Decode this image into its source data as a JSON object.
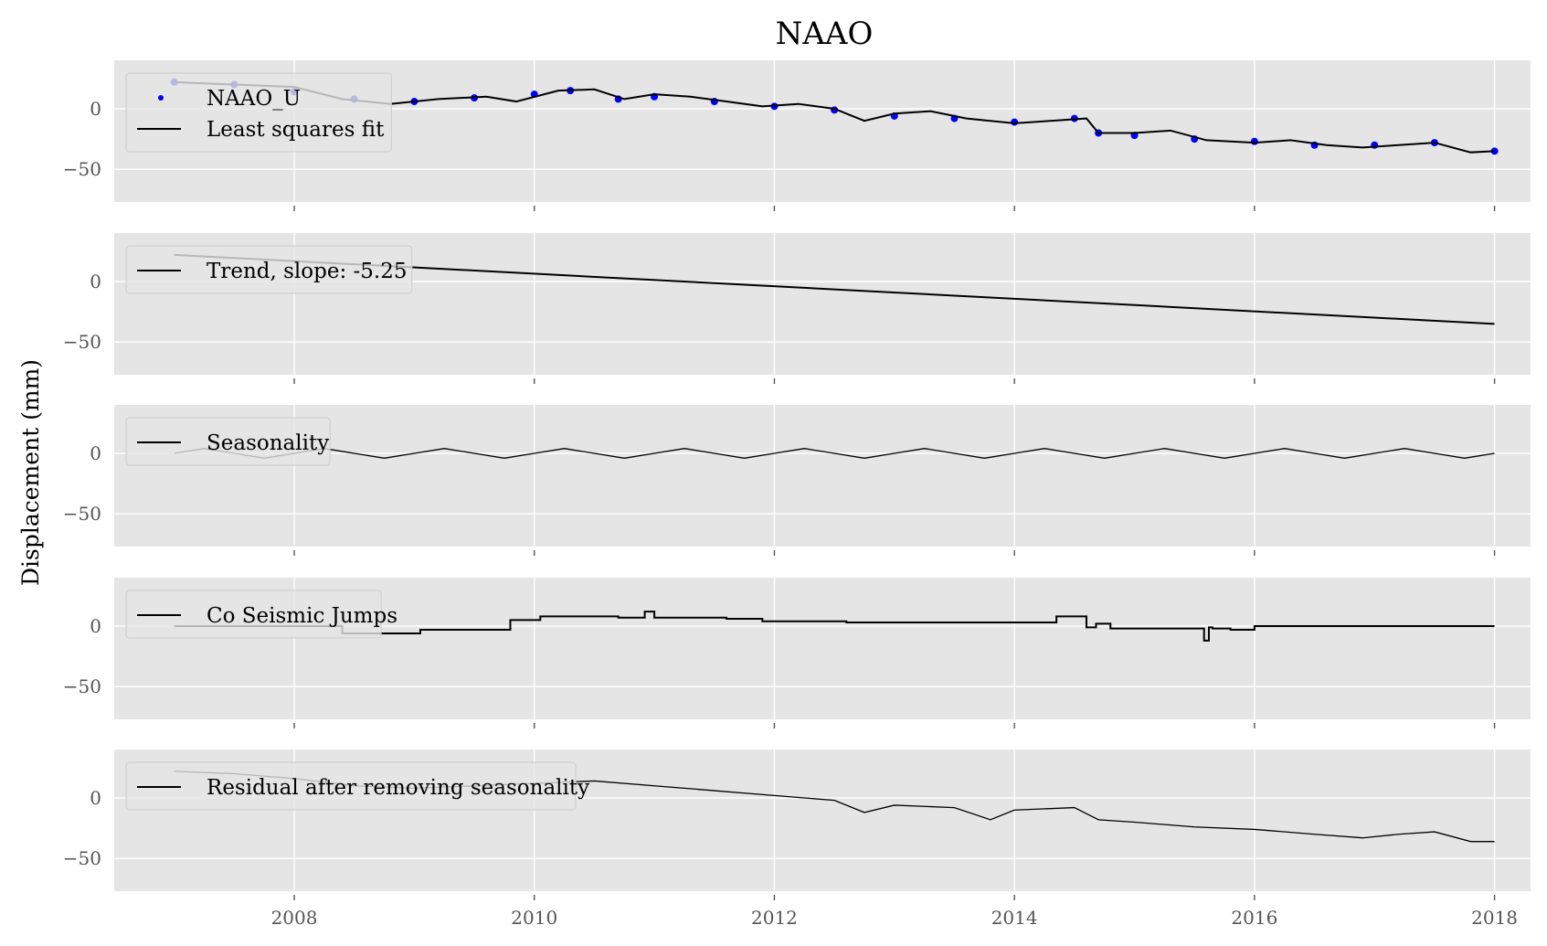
{
  "chart_data": {
    "type": "line",
    "title": "NAAO",
    "ylabel": "Displacement (mm)",
    "x_ticks": [
      "2008",
      "2010",
      "2012",
      "2014",
      "2016",
      "2018"
    ],
    "xlim": [
      2006.5,
      2018.3
    ],
    "y_ticks": [
      "0",
      "−50"
    ],
    "grid": true,
    "panels": [
      {
        "id": "observations",
        "ylim": [
          -77,
          40
        ],
        "legend": [
          {
            "label": "NAAO_U",
            "kind": "marker",
            "color": "#0000ff"
          },
          {
            "label": "Least squares fit",
            "kind": "line",
            "color": "#000000"
          }
        ],
        "series": [
          {
            "name": "NAAO_U",
            "kind": "scatter",
            "color": "#0000ff",
            "x": [
              2007.0,
              2007.5,
              2008.0,
              2008.5,
              2009.0,
              2009.5,
              2010.0,
              2010.3,
              2010.7,
              2011.0,
              2011.5,
              2012.0,
              2012.5,
              2013.0,
              2013.5,
              2014.0,
              2014.5,
              2014.7,
              2015.0,
              2015.5,
              2016.0,
              2016.5,
              2017.0,
              2017.5,
              2018.0
            ],
            "y": [
              22,
              20,
              14,
              8,
              6,
              9,
              12,
              15,
              8,
              10,
              6,
              2,
              -1,
              -6,
              -8,
              -11,
              -8,
              -20,
              -22,
              -25,
              -27,
              -30,
              -30,
              -28,
              -35
            ]
          },
          {
            "name": "Least squares fit",
            "kind": "line",
            "color": "#000000",
            "x": [
              2007.0,
              2007.5,
              2008.0,
              2008.4,
              2008.8,
              2009.2,
              2009.6,
              2009.85,
              2010.2,
              2010.5,
              2010.75,
              2011.0,
              2011.3,
              2011.6,
              2011.9,
              2012.2,
              2012.5,
              2012.75,
              2013.0,
              2013.3,
              2013.6,
              2014.0,
              2014.3,
              2014.6,
              2014.7,
              2015.0,
              2015.3,
              2015.6,
              2016.0,
              2016.3,
              2016.6,
              2016.9,
              2017.2,
              2017.5,
              2017.8,
              2018.0
            ],
            "y": [
              22,
              20,
              18,
              8,
              4,
              8,
              10,
              6,
              15,
              16,
              8,
              12,
              10,
              6,
              2,
              4,
              0,
              -10,
              -4,
              -2,
              -8,
              -12,
              -10,
              -8,
              -20,
              -20,
              -18,
              -26,
              -28,
              -26,
              -30,
              -32,
              -30,
              -28,
              -36,
              -35
            ]
          }
        ]
      },
      {
        "id": "trend",
        "ylim": [
          -77,
          40
        ],
        "legend": [
          {
            "label": "Trend, slope: -5.25",
            "kind": "line",
            "color": "#000000"
          }
        ],
        "series": [
          {
            "name": "Trend, slope: -5.25",
            "kind": "line",
            "color": "#000000",
            "x": [
              2007.0,
              2018.0
            ],
            "y": [
              22,
              -35
            ]
          }
        ]
      },
      {
        "id": "seasonality",
        "ylim": [
          -77,
          40
        ],
        "legend": [
          {
            "label": "Seasonality",
            "kind": "line",
            "color": "#000000"
          }
        ],
        "series": [
          {
            "name": "Seasonality",
            "kind": "line",
            "color": "#000000",
            "x": [
              2007.0,
              2007.25,
              2007.5,
              2007.75,
              2008.0,
              2008.25,
              2008.5,
              2008.75,
              2009.0,
              2009.25,
              2009.5,
              2009.75,
              2010.0,
              2010.25,
              2010.5,
              2010.75,
              2011.0,
              2011.25,
              2011.5,
              2011.75,
              2012.0,
              2012.25,
              2012.5,
              2012.75,
              2013.0,
              2013.25,
              2013.5,
              2013.75,
              2014.0,
              2014.25,
              2014.5,
              2014.75,
              2015.0,
              2015.25,
              2015.5,
              2015.75,
              2016.0,
              2016.25,
              2016.5,
              2016.75,
              2017.0,
              2017.25,
              2017.5,
              2017.75,
              2018.0
            ],
            "y": [
              0,
              4,
              0,
              -4,
              0,
              4,
              0,
              -4,
              0,
              4,
              0,
              -4,
              0,
              4,
              0,
              -4,
              0,
              4,
              0,
              -4,
              0,
              4,
              0,
              -4,
              0,
              4,
              0,
              -4,
              0,
              4,
              0,
              -4,
              0,
              4,
              0,
              -4,
              0,
              4,
              0,
              -4,
              0,
              4,
              0,
              -4,
              0
            ]
          }
        ]
      },
      {
        "id": "coseismic",
        "ylim": [
          -77,
          40
        ],
        "legend": [
          {
            "label": "Co Seismic Jumps",
            "kind": "line",
            "color": "#000000"
          }
        ],
        "series": [
          {
            "name": "Co Seismic Jumps",
            "kind": "step",
            "color": "#000000",
            "x": [
              2007.0,
              2008.4,
              2009.05,
              2009.8,
              2010.05,
              2010.7,
              2010.92,
              2011.0,
              2011.6,
              2011.9,
              2012.6,
              2014.35,
              2014.6,
              2014.68,
              2014.8,
              2015.55,
              2015.58,
              2015.62,
              2015.65,
              2015.8,
              2016.0,
              2018.0
            ],
            "y": [
              0,
              -6,
              -3,
              5,
              8,
              7,
              12,
              7,
              6,
              4,
              3,
              8,
              -1,
              2,
              -2,
              -2,
              -12,
              -1,
              -2,
              -3,
              0,
              0
            ]
          }
        ]
      },
      {
        "id": "residual",
        "ylim": [
          -77,
          40
        ],
        "legend": [
          {
            "label": "Residual after removing seasonality",
            "kind": "line",
            "color": "#000000"
          }
        ],
        "series": [
          {
            "name": "Residual after removing seasonality",
            "kind": "line",
            "color": "#000000",
            "x": [
              2007.0,
              2007.5,
              2008.0,
              2008.5,
              2009.0,
              2009.5,
              2010.0,
              2010.5,
              2011.0,
              2011.5,
              2012.0,
              2012.5,
              2012.75,
              2013.0,
              2013.5,
              2013.8,
              2014.0,
              2014.5,
              2014.7,
              2015.0,
              2015.5,
              2016.0,
              2016.5,
              2016.9,
              2017.2,
              2017.5,
              2017.8,
              2018.0
            ],
            "y": [
              22,
              20,
              16,
              10,
              8,
              10,
              12,
              14,
              10,
              6,
              2,
              -2,
              -12,
              -6,
              -8,
              -18,
              -10,
              -8,
              -18,
              -20,
              -24,
              -26,
              -30,
              -33,
              -30,
              -28,
              -36,
              -36
            ]
          }
        ]
      }
    ]
  }
}
